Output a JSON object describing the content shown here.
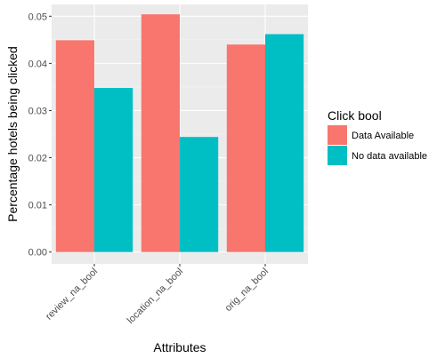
{
  "chart_data": {
    "type": "bar",
    "categories": [
      "review_na_bool",
      "location_na_bool",
      "orig_na_bool"
    ],
    "series": [
      {
        "name": "Data Available",
        "values": [
          0.0449,
          0.0504,
          0.044
        ]
      },
      {
        "name": "No data available",
        "values": [
          0.0348,
          0.0244,
          0.0462
        ]
      }
    ],
    "colors": [
      "#f8766d",
      "#00bfc4"
    ],
    "xlabel": "Attributes",
    "ylabel": "Percentage hotels being clicked",
    "ylim": [
      -0.0025,
      0.0525
    ],
    "yticks": [
      0.0,
      0.01,
      0.02,
      0.03,
      0.04,
      0.05
    ],
    "ytick_labels": [
      "0.00",
      "0.01",
      "0.02",
      "0.03",
      "0.04",
      "0.05"
    ],
    "legend": {
      "title": "Click bool",
      "position": "right"
    },
    "grid": true,
    "panel_background": "#ebebeb"
  }
}
